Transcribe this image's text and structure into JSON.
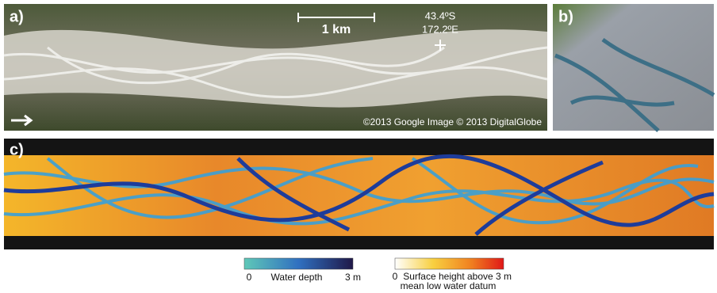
{
  "panels": [
    {
      "label": "a)",
      "scale_bar": "1 km",
      "latitude": "43.4ºS",
      "longitude": "172.2ºE",
      "credit": "©2013 Google Image © 2013 DigitalGlobe"
    },
    {
      "label": "b)"
    },
    {
      "label": "c)"
    }
  ],
  "legends": [
    {
      "min": "0",
      "title": "Water depth",
      "max": "3 m"
    },
    {
      "min": "0",
      "title": [
        "Surface height above",
        "mean low water datum"
      ],
      "max": "3 m"
    }
  ]
}
